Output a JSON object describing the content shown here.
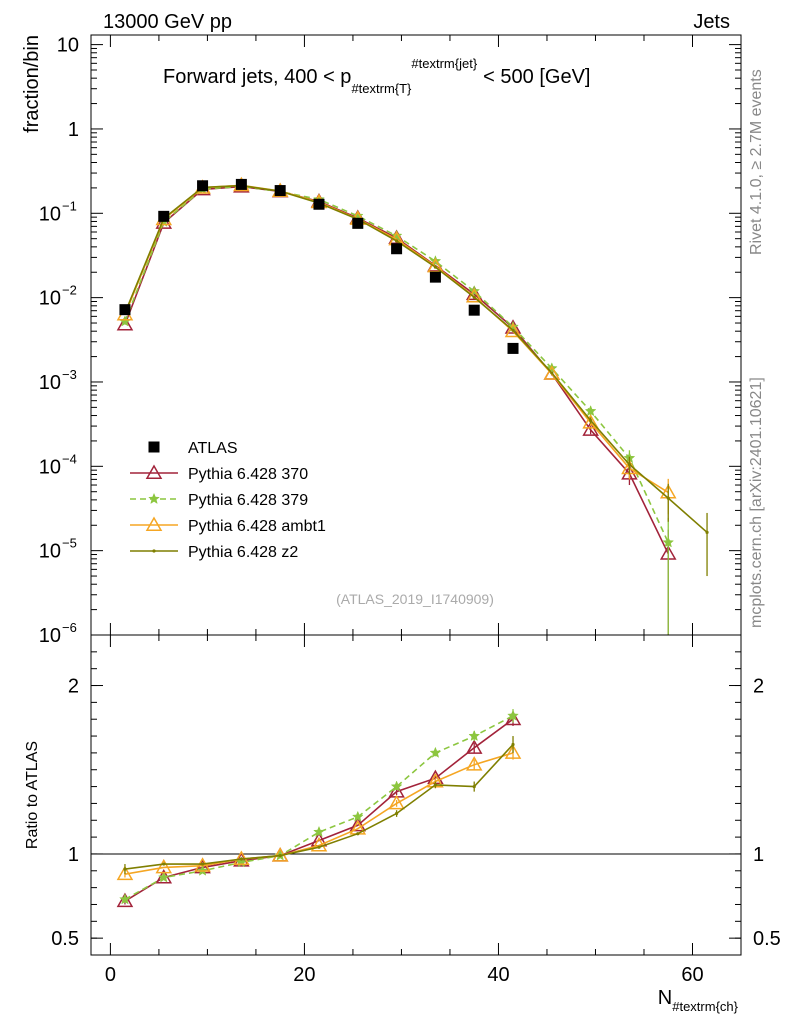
{
  "header": {
    "left": "13000 GeV pp",
    "right": "Jets"
  },
  "side_labels": {
    "rivet": "Rivet 4.1.0, ≥ 2.7M events",
    "mcplots": "mcplots.cern.ch [arXiv:2401.10621]"
  },
  "main_panel": {
    "title_prefix": "Forward jets, 400 < p",
    "title_sub": "#textrm{T}",
    "title_sup": "#textrm{jet}",
    "title_suffix": "< 500 [GeV]",
    "ylabel": "fraction/bin",
    "analysis_tag": "(ATLAS_2019_I1740909)",
    "yticks": [
      {
        "value": 10,
        "label": "10"
      },
      {
        "value": 1,
        "label": "1"
      },
      {
        "value": 0.1,
        "base": "10",
        "exp": "−1"
      },
      {
        "value": 0.01,
        "base": "10",
        "exp": "−2"
      },
      {
        "value": 0.001,
        "base": "10",
        "exp": "−3"
      },
      {
        "value": 0.0001,
        "base": "10",
        "exp": "−4"
      },
      {
        "value": 1e-05,
        "base": "10",
        "exp": "−5"
      },
      {
        "value": 1e-06,
        "base": "10",
        "exp": "−6"
      }
    ]
  },
  "ratio_panel": {
    "ylabel": "Ratio to ATLAS",
    "ylim": [
      0.4,
      2.3
    ],
    "yticks": [
      {
        "value": 0.5,
        "label": "0.5"
      },
      {
        "value": 1,
        "label": "1"
      },
      {
        "value": 2,
        "label": "2"
      }
    ]
  },
  "x_axis": {
    "label_main": "N",
    "label_sub": "#textrm{ch}",
    "ticks": [
      {
        "value": 0,
        "label": "0"
      },
      {
        "value": 20,
        "label": "20"
      },
      {
        "value": 40,
        "label": "40"
      },
      {
        "value": 60,
        "label": "60"
      }
    ]
  },
  "legend": {
    "items": [
      {
        "key": "atlas",
        "label": "ATLAS"
      },
      {
        "key": "p370",
        "label": "Pythia 6.428 370"
      },
      {
        "key": "p379",
        "label": "Pythia 6.428 379"
      },
      {
        "key": "ambt1",
        "label": "Pythia 6.428 ambt1"
      },
      {
        "key": "z2",
        "label": "Pythia 6.428 z2"
      }
    ]
  },
  "chart_data": {
    "type": "line",
    "title": "Forward jets, 400 < pT(jet) < 500 [GeV]",
    "xlabel": "N_ch",
    "ylabel": "fraction/bin",
    "xlim": [
      -2,
      65
    ],
    "ylim": [
      1e-06,
      13
    ],
    "yscale": "log",
    "x": [
      1.5,
      5.5,
      9.5,
      13.5,
      17.5,
      21.5,
      25.5,
      29.5,
      33.5,
      37.5,
      41.5,
      45.5,
      49.5,
      53.5,
      57.5,
      61.5
    ],
    "data": {
      "name": "ATLAS",
      "x": [
        1.5,
        5.5,
        9.5,
        13.5,
        17.5,
        21.5,
        25.5,
        29.5,
        33.5,
        37.5,
        41.5
      ],
      "values": [
        0.0072,
        0.092,
        0.212,
        0.22,
        0.186,
        0.128,
        0.076,
        0.038,
        0.0175,
        0.0071,
        0.0025
      ],
      "color": "#000000"
    },
    "series": [
      {
        "name": "Pythia 6.428 370",
        "key": "p370",
        "color": "#a2233a",
        "dash": "",
        "marker": "triangle-open",
        "x": [
          1.5,
          5.5,
          9.5,
          13.5,
          17.5,
          21.5,
          25.5,
          29.5,
          33.5,
          37.5,
          41.5,
          45.5,
          49.5,
          53.5,
          57.5
        ],
        "values": [
          0.0048,
          0.077,
          0.192,
          0.207,
          0.182,
          0.138,
          0.088,
          0.051,
          0.024,
          0.011,
          0.0044,
          0.00125,
          0.00027,
          8.2e-05,
          9.2e-06
        ],
        "errors": [
          0,
          0,
          0,
          0,
          0,
          0,
          0,
          0,
          0,
          0,
          0,
          6e-05,
          3e-05,
          2.2e-05,
          8.5e-06
        ],
        "ratio": [
          0.72,
          0.86,
          0.92,
          0.96,
          0.99,
          1.08,
          1.17,
          1.37,
          1.45,
          1.63,
          1.8
        ],
        "ratio_err": [
          0.02,
          0.01,
          0.01,
          0.01,
          0.01,
          0.01,
          0.01,
          0.02,
          0.02,
          0.03,
          0.04
        ]
      },
      {
        "name": "Pythia 6.428 379",
        "key": "p379",
        "color": "#8cc63f",
        "dash": "6,4",
        "marker": "star",
        "x": [
          1.5,
          5.5,
          9.5,
          13.5,
          17.5,
          21.5,
          25.5,
          29.5,
          33.5,
          37.5,
          41.5,
          45.5,
          49.5,
          53.5,
          57.5
        ],
        "values": [
          0.0052,
          0.079,
          0.193,
          0.209,
          0.181,
          0.146,
          0.093,
          0.054,
          0.027,
          0.0119,
          0.0045,
          0.00145,
          0.00045,
          0.000125,
          1.25e-05
        ],
        "errors": [
          0,
          0,
          0,
          0,
          0,
          0,
          0,
          0,
          0,
          0,
          0,
          6e-05,
          6e-05,
          3e-05,
          1.2e-05
        ],
        "ratio": [
          0.73,
          0.86,
          0.9,
          0.95,
          0.99,
          1.13,
          1.22,
          1.4,
          1.6,
          1.7,
          1.82
        ],
        "ratio_err": [
          0.02,
          0.01,
          0.01,
          0.01,
          0.01,
          0.01,
          0.01,
          0.02,
          0.02,
          0.03,
          0.04
        ]
      },
      {
        "name": "Pythia 6.428 ambt1",
        "key": "ambt1",
        "color": "#f5a623",
        "dash": "",
        "marker": "triangle-open",
        "x": [
          1.5,
          5.5,
          9.5,
          13.5,
          17.5,
          21.5,
          25.5,
          29.5,
          33.5,
          37.5,
          41.5,
          45.5,
          49.5,
          53.5,
          57.5
        ],
        "values": [
          0.0063,
          0.085,
          0.201,
          0.215,
          0.184,
          0.135,
          0.086,
          0.049,
          0.0235,
          0.0103,
          0.004,
          0.00125,
          0.00033,
          9.5e-05,
          4.9e-05
        ],
        "errors": [
          0,
          0,
          0,
          0,
          0,
          0,
          0,
          0,
          0,
          0,
          0,
          5e-05,
          3e-05,
          2.5e-05,
          2.2e-05
        ],
        "ratio": [
          0.88,
          0.92,
          0.93,
          0.97,
          0.99,
          1.05,
          1.15,
          1.3,
          1.43,
          1.53,
          1.6
        ],
        "ratio_err": [
          0.02,
          0.01,
          0.01,
          0.01,
          0.01,
          0.01,
          0.01,
          0.02,
          0.02,
          0.03,
          0.04
        ]
      },
      {
        "name": "Pythia 6.428 z2",
        "key": "z2",
        "color": "#7f7f00",
        "dash": "",
        "marker": "dot",
        "x": [
          1.5,
          5.5,
          9.5,
          13.5,
          17.5,
          21.5,
          25.5,
          29.5,
          33.5,
          37.5,
          41.5,
          45.5,
          49.5,
          53.5,
          57.5,
          61.5
        ],
        "values": [
          0.0066,
          0.087,
          0.203,
          0.213,
          0.183,
          0.132,
          0.085,
          0.047,
          0.023,
          0.0101,
          0.0041,
          0.00128,
          0.00035,
          0.000105,
          4.2e-05,
          1.65e-05
        ],
        "errors": [
          0,
          0,
          0,
          0,
          0,
          0,
          0,
          0,
          0,
          0,
          0,
          5e-05,
          3e-05,
          2.5e-05,
          2e-05,
          1.15e-05
        ],
        "ratio": [
          0.91,
          0.94,
          0.94,
          0.97,
          0.99,
          1.04,
          1.12,
          1.24,
          1.41,
          1.4,
          1.65
        ],
        "ratio_err": [
          0.03,
          0.01,
          0.01,
          0.01,
          0.01,
          0.01,
          0.01,
          0.02,
          0.02,
          0.03,
          0.05
        ]
      }
    ]
  }
}
